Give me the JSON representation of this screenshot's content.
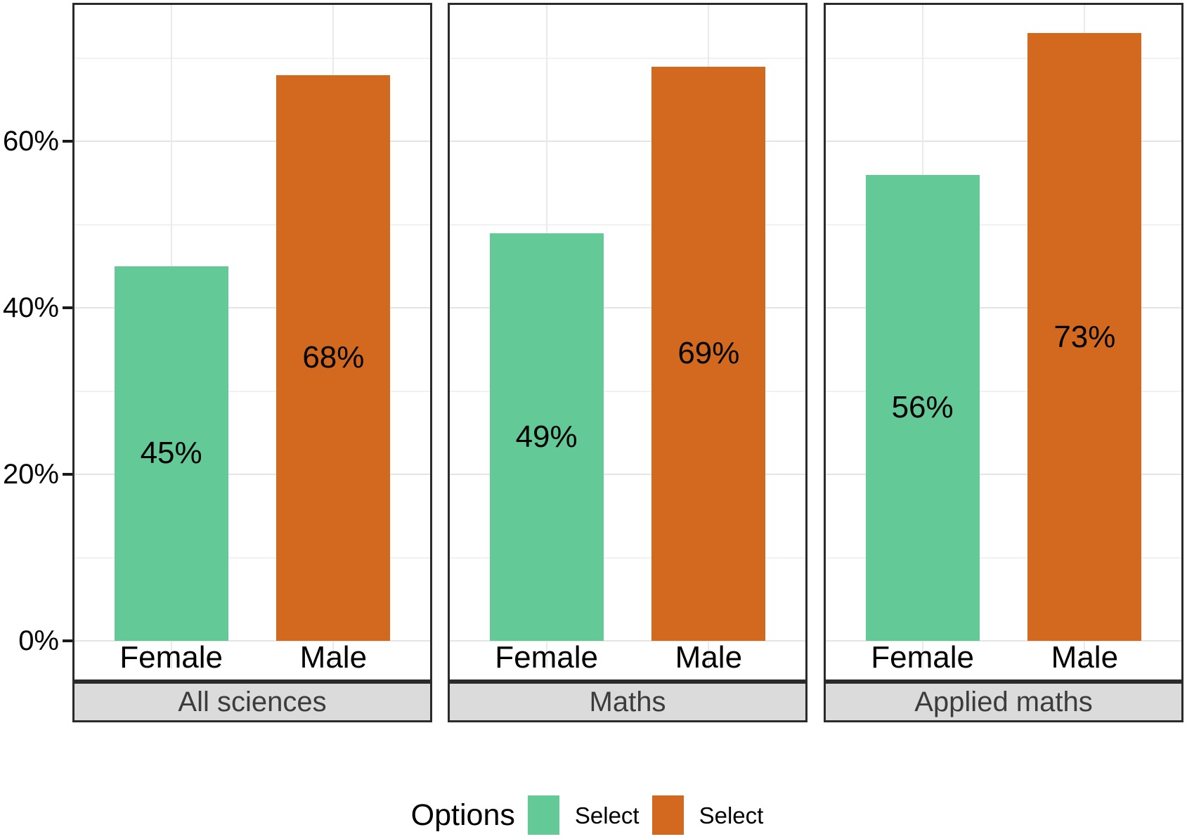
{
  "chart_data": {
    "type": "bar",
    "title": "",
    "xlabel": "",
    "ylabel": "",
    "facet_strip_position": "bottom",
    "grid": true,
    "facets": [
      {
        "label": "All sciences",
        "categories": [
          "Female",
          "Male"
        ],
        "values": [
          45,
          68
        ],
        "value_labels": [
          "45%",
          "68%"
        ]
      },
      {
        "label": "Maths",
        "categories": [
          "Female",
          "Male"
        ],
        "values": [
          49,
          69
        ],
        "value_labels": [
          "49%",
          "69%"
        ]
      },
      {
        "label": "Applied maths",
        "categories": [
          "Female",
          "Male"
        ],
        "values": [
          56,
          73
        ],
        "value_labels": [
          "56%",
          "73%"
        ]
      }
    ],
    "bar_colors": [
      "#63c997",
      "#d2691e"
    ],
    "y_axis": {
      "ticks": [
        {
          "value": 0,
          "label": "0%"
        },
        {
          "value": 20,
          "label": "20%"
        },
        {
          "value": 40,
          "label": "40%"
        },
        {
          "value": 60,
          "label": "60%"
        }
      ],
      "minor_ticks": [
        10,
        30,
        50,
        70
      ],
      "range": [
        0,
        76.4
      ]
    },
    "legend": {
      "position": "bottom",
      "title": "Options",
      "entries": [
        {
          "label": "Select",
          "color": "#63c997"
        },
        {
          "label": "Select",
          "color": "#d2691e"
        }
      ]
    },
    "colors": {
      "panel_border": "#2b2b2b",
      "strip_background": "#dbdbdb",
      "strip_text": "#3c3c3c",
      "grid_major": "#e4e4e4",
      "grid_minor": "#f1f1f1",
      "text": "#000000"
    }
  }
}
